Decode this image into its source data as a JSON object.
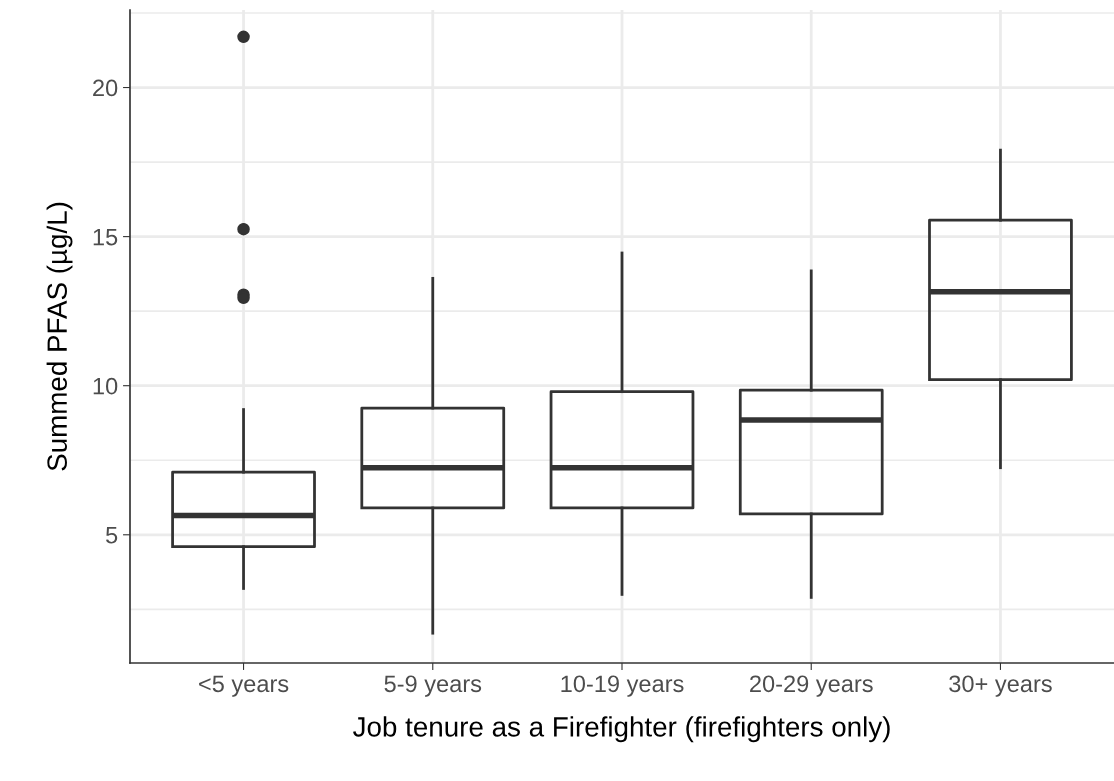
{
  "chart_data": {
    "type": "box",
    "xlabel": "Job tenure as a Firefighter (firefighters only)",
    "ylabel": "Summed PFAS (µg/L)",
    "categories": [
      "<5 years",
      "5-9 years",
      "10-19 years",
      "20-29 years",
      "30+ years"
    ],
    "boxes": [
      {
        "low": 3.2,
        "q1": 4.6,
        "median": 5.65,
        "q3": 7.1,
        "high": 9.2,
        "outliers": [
          21.7,
          15.25,
          13.05,
          12.95
        ]
      },
      {
        "low": 1.7,
        "q1": 5.9,
        "median": 7.25,
        "q3": 9.25,
        "high": 13.6
      },
      {
        "low": 3.0,
        "q1": 5.9,
        "median": 7.25,
        "q3": 9.8,
        "high": 14.45
      },
      {
        "low": 2.9,
        "q1": 5.7,
        "median": 8.85,
        "q3": 9.85,
        "high": 13.85
      },
      {
        "low": 7.25,
        "q1": 10.2,
        "median": 13.15,
        "q3": 15.55,
        "high": 17.9
      }
    ],
    "color": "#333333",
    "ylim": [
      0.7,
      22.6
    ],
    "yticks": [
      5,
      10,
      15,
      20
    ],
    "grid": true
  }
}
